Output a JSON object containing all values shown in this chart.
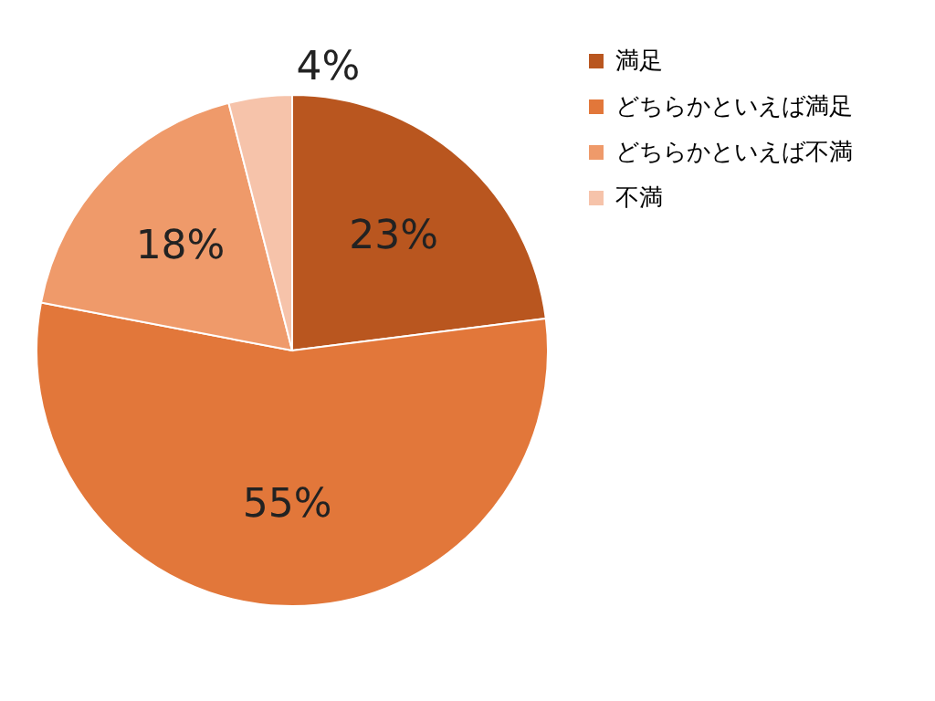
{
  "chart_data": {
    "type": "pie",
    "categories": [
      "満足",
      "どちらかといえば満足",
      "どちらかといえば不満",
      "不満"
    ],
    "values": [
      23,
      55,
      18,
      4
    ],
    "colors": [
      "#b9561f",
      "#e2773a",
      "#ef9a6a",
      "#f6c3aa"
    ],
    "value_labels": [
      "23%",
      "55%",
      "18%",
      "4%"
    ],
    "legend": "right"
  }
}
